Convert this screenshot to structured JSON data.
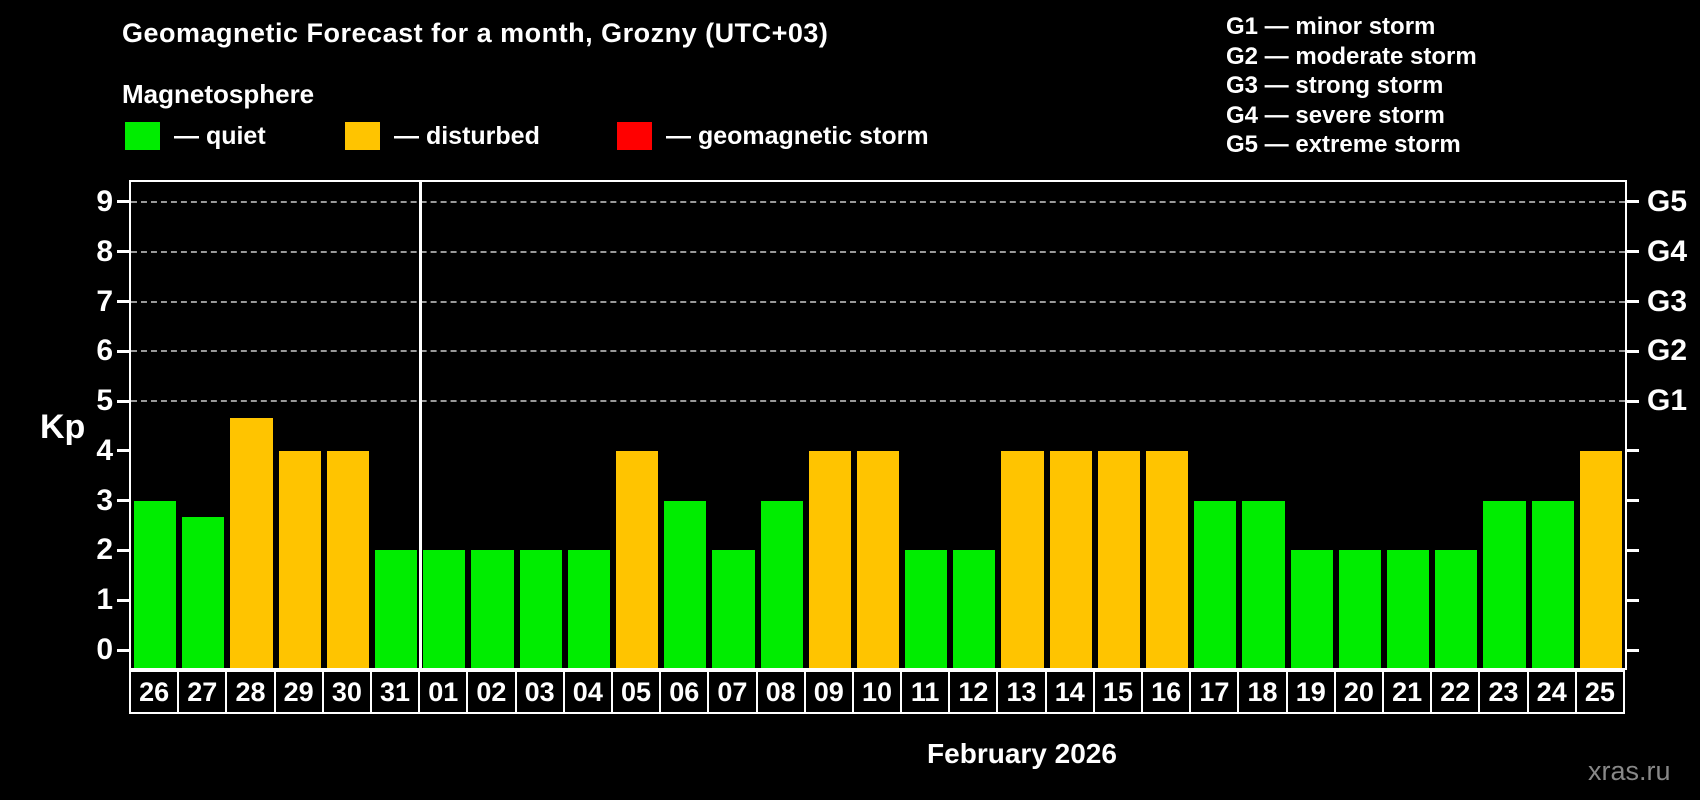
{
  "header": {
    "title": "Geomagnetic Forecast for a month, Grozny (UTC+03)",
    "subtitle": "Magnetosphere"
  },
  "legend": {
    "items": [
      {
        "id": "quiet",
        "label": "— quiet",
        "color": "#00ed00"
      },
      {
        "id": "disturbed",
        "label": "— disturbed",
        "color": "#ffc400"
      },
      {
        "id": "storm",
        "label": "— geomagnetic storm",
        "color": "#ff0000"
      }
    ]
  },
  "g_legend": {
    "items": [
      "G1 — minor storm",
      "G2 — moderate storm",
      "G3 — strong storm",
      "G4 — severe storm",
      "G5 — extreme storm"
    ]
  },
  "chart_data": {
    "type": "bar",
    "title": "Geomagnetic Forecast for a month, Grozny (UTC+03)",
    "ylabel": "Kp",
    "xlabel": "February 2026",
    "ylim": [
      0,
      9
    ],
    "yticks": [
      0,
      1,
      2,
      3,
      4,
      5,
      6,
      7,
      8,
      9
    ],
    "gridlines_at": [
      5,
      6,
      7,
      8,
      9
    ],
    "grid": "dashed horizontal lines at storm levels G1–G5 only",
    "legend_position": "top-left",
    "right_axis": [
      {
        "kp": 5,
        "label": "G1"
      },
      {
        "kp": 6,
        "label": "G2"
      },
      {
        "kp": 7,
        "label": "G3"
      },
      {
        "kp": 8,
        "label": "G4"
      },
      {
        "kp": 9,
        "label": "G5"
      }
    ],
    "month_separator_after_index": 5,
    "categories": [
      "26",
      "27",
      "28",
      "29",
      "30",
      "31",
      "01",
      "02",
      "03",
      "04",
      "05",
      "06",
      "07",
      "08",
      "09",
      "10",
      "11",
      "12",
      "13",
      "14",
      "15",
      "16",
      "17",
      "18",
      "19",
      "20",
      "21",
      "22",
      "23",
      "24",
      "25"
    ],
    "values": [
      3,
      2.67,
      4.67,
      4,
      4,
      2,
      2,
      2,
      2,
      2,
      4,
      3,
      2,
      3,
      4,
      4,
      2,
      2,
      4,
      4,
      4,
      4,
      3,
      3,
      2,
      2,
      2,
      2,
      3,
      3,
      4
    ],
    "statuses": [
      "quiet",
      "quiet",
      "disturbed",
      "disturbed",
      "disturbed",
      "quiet",
      "quiet",
      "quiet",
      "quiet",
      "quiet",
      "disturbed",
      "quiet",
      "quiet",
      "quiet",
      "disturbed",
      "disturbed",
      "quiet",
      "quiet",
      "disturbed",
      "disturbed",
      "disturbed",
      "disturbed",
      "quiet",
      "quiet",
      "quiet",
      "quiet",
      "quiet",
      "quiet",
      "quiet",
      "quiet",
      "disturbed"
    ]
  },
  "footer": {
    "xlabel": "February 2026",
    "watermark": "xras.ru"
  }
}
